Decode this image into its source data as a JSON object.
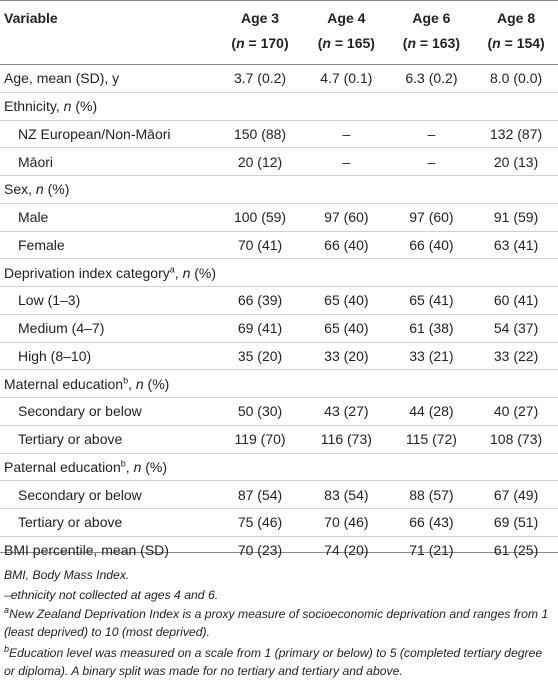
{
  "header": {
    "variable": "Variable",
    "cols": [
      {
        "age": "Age 3",
        "n": "(n = 170)"
      },
      {
        "age": "Age 4",
        "n": "(n = 165)"
      },
      {
        "age": "Age 6",
        "n": "(n = 163)"
      },
      {
        "age": "Age 8",
        "n": "(n = 154)"
      }
    ]
  },
  "rows": [
    {
      "label": "Age, mean (SD), y",
      "indent": false,
      "values": [
        "3.7 (0.2)",
        "4.7 (0.1)",
        "6.3 (0.2)",
        "8.0 (0.0)"
      ]
    },
    {
      "label": "Ethnicity, n (%)",
      "indent": false,
      "values": [
        "",
        "",
        "",
        ""
      ]
    },
    {
      "label": "NZ European/Non-Māori",
      "indent": true,
      "values": [
        "150 (88)",
        "–",
        "–",
        "132 (87)"
      ]
    },
    {
      "label": "Māori",
      "indent": true,
      "values": [
        "20 (12)",
        "–",
        "–",
        "20 (13)"
      ]
    },
    {
      "label": "Sex, n (%)",
      "indent": false,
      "values": [
        "",
        "",
        "",
        ""
      ]
    },
    {
      "label": "Male",
      "indent": true,
      "values": [
        "100 (59)",
        "97 (60)",
        "97 (60)",
        "91 (59)"
      ]
    },
    {
      "label": "Female",
      "indent": true,
      "values": [
        "70 (41)",
        "66 (40)",
        "66 (40)",
        "63 (41)"
      ]
    },
    {
      "label": "Deprivation index categoryᵃ, n (%)",
      "indent": false,
      "values": [
        "",
        "",
        "",
        ""
      ]
    },
    {
      "label": "Low (1–3)",
      "indent": true,
      "values": [
        "66 (39)",
        "65 (40)",
        "65 (41)",
        "60 (41)"
      ]
    },
    {
      "label": "Medium (4–7)",
      "indent": true,
      "values": [
        "69 (41)",
        "65 (40)",
        "61 (38)",
        "54 (37)"
      ]
    },
    {
      "label": "High (8–10)",
      "indent": true,
      "values": [
        "35 (20)",
        "33 (20)",
        "33 (21)",
        "33 (22)"
      ]
    },
    {
      "label": "Maternal educationᵇ, n (%)",
      "indent": false,
      "values": [
        "",
        "",
        "",
        ""
      ]
    },
    {
      "label": "Secondary or below",
      "indent": true,
      "values": [
        "50 (30)",
        "43 (27)",
        "44 (28)",
        "40 (27)"
      ]
    },
    {
      "label": "Tertiary or above",
      "indent": true,
      "values": [
        "119 (70)",
        "116 (73)",
        "115 (72)",
        "108 (73)"
      ]
    },
    {
      "label": "Paternal educationᵇ, n (%)",
      "indent": false,
      "values": [
        "",
        "",
        "",
        ""
      ]
    },
    {
      "label": "Secondary or below",
      "indent": true,
      "values": [
        "87 (54)",
        "83 (54)",
        "88 (57)",
        "67 (49)"
      ]
    },
    {
      "label": "Tertiary or above",
      "indent": true,
      "values": [
        "75 (46)",
        "70 (46)",
        "66 (43)",
        "69 (51)"
      ]
    },
    {
      "label": "BMI percentile, mean (SD)",
      "indent": false,
      "values": [
        "70 (23)",
        "74 (20)",
        "71 (21)",
        "61 (25)"
      ]
    }
  ],
  "notes": [
    "BMI, Body Mass Index.",
    "–ethnicity not collected at ages 4 and 6.",
    "ᵃNew Zealand Deprivation Index is a proxy measure of socioeconomic deprivation and ranges from 1 (least deprived) to 10 (most deprived).",
    "ᵇEducation level was measured on a scale from 1 (primary or below) to 5 (completed tertiary degree or diploma). A binary split was made for no tertiary and tertiary and above."
  ]
}
